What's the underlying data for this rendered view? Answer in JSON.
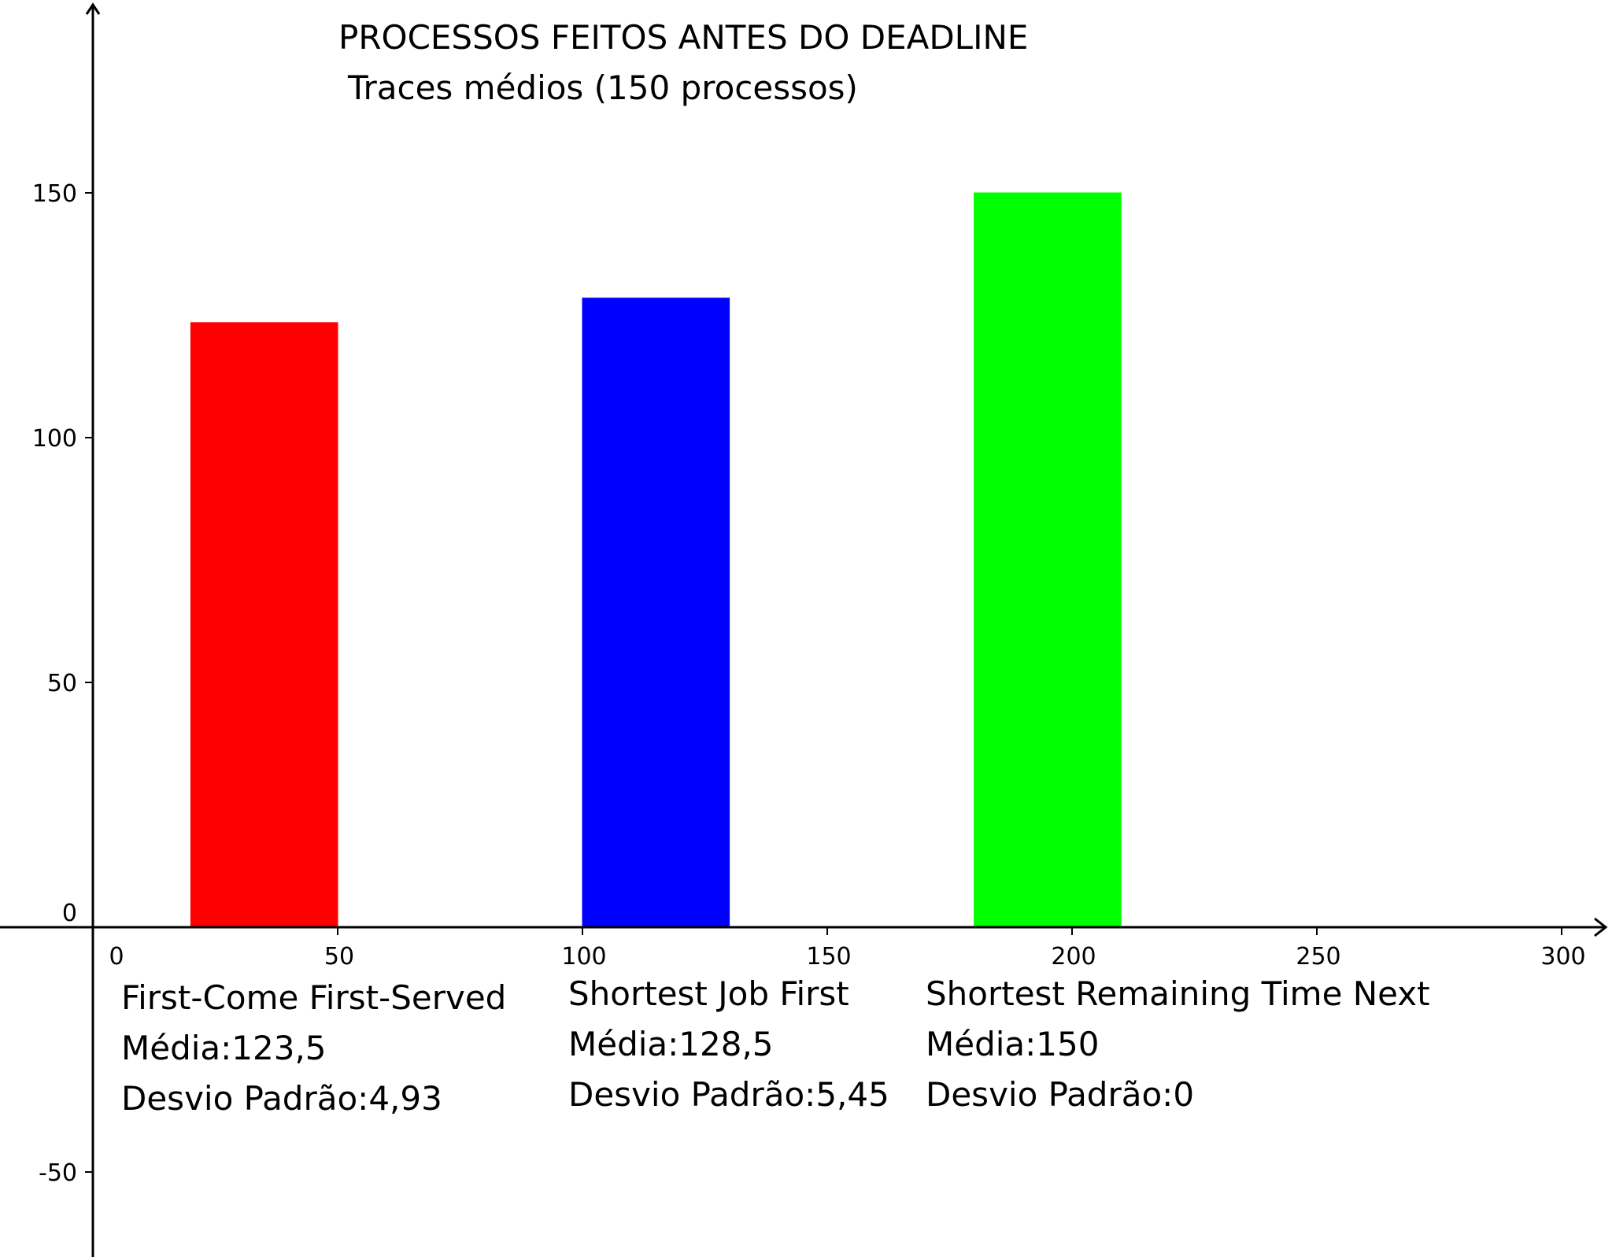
{
  "chart_data": {
    "type": "bar",
    "title": "PROCESSOS FEITOS ANTES DO DEADLINE",
    "subtitle": "Traces médios (150 processos)",
    "xlabel": "",
    "ylabel": "",
    "xlim": [
      0,
      300
    ],
    "ylim": [
      -60,
      170
    ],
    "x_ticks": [
      "0",
      "50",
      "100",
      "150",
      "200",
      "250",
      "300"
    ],
    "y_ticks": [
      "-50",
      "0",
      "50",
      "100",
      "150"
    ],
    "grid": false,
    "bars": [
      {
        "x_start": 20,
        "x_end": 50,
        "value": 123.5,
        "color": "#ff0000"
      },
      {
        "x_start": 100,
        "x_end": 130,
        "value": 128.5,
        "color": "#0000ff"
      },
      {
        "x_start": 180,
        "x_end": 210,
        "value": 150,
        "color": "#00ff00"
      }
    ],
    "annotations": [
      {
        "name": "First-Come First-Served",
        "media": "Média:123,5",
        "desvio": "Desvio Padrão:4,93"
      },
      {
        "name": "Shortest Job First",
        "media": "Média:128,5",
        "desvio": "Desvio Padrão:5,45"
      },
      {
        "name": "Shortest Remaining Time Next",
        "media": "Média:150",
        "desvio": "Desvio Padrão:0"
      }
    ]
  }
}
